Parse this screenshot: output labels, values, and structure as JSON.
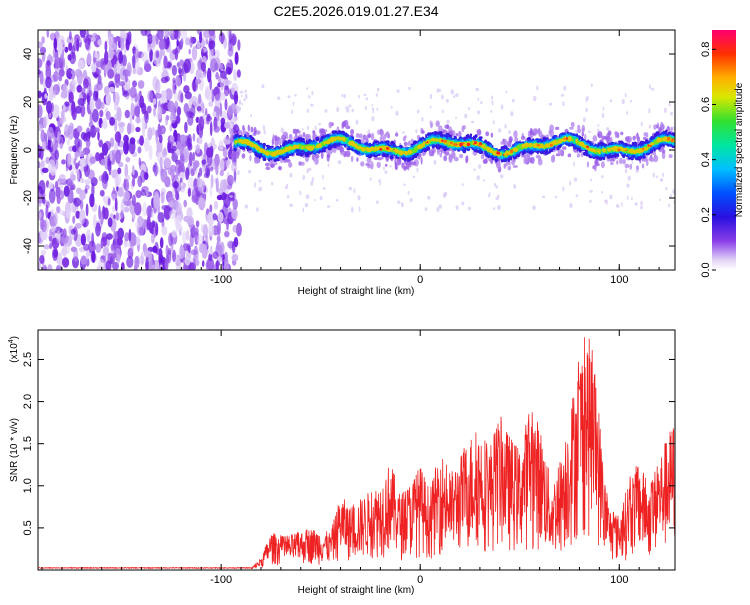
{
  "title": "C2E5.2026.019.01.27.E34",
  "chart_data": [
    {
      "type": "heatmap",
      "xlabel": "Height of straight line (km)",
      "ylabel": "Frequency (Hz)",
      "xlim": [
        -192,
        128
      ],
      "ylim": [
        -50,
        50
      ],
      "xticks": [
        -100,
        0,
        100
      ],
      "yticks": [
        -40,
        -20,
        0,
        20,
        40
      ],
      "noise_region": [
        -192,
        -95
      ],
      "signal_region": [
        -95,
        128
      ],
      "signal_band_hz": [
        -5,
        6
      ],
      "colorbar": {
        "label": "Normalized spectral amplitude",
        "range": [
          0.0,
          0.87
        ],
        "ticks": [
          "0.0",
          "0.2",
          "0.4",
          "0.6",
          "0.8"
        ]
      }
    },
    {
      "type": "line",
      "xlabel": "Height of straight line (km)",
      "ylabel": "SNR (10 * v/v)",
      "multiplier": "(x10",
      "multiplier_exp": "4",
      "multiplier_close": ")",
      "xlim": [
        -192,
        128
      ],
      "ylim": [
        0,
        2.85
      ],
      "xticks": [
        -100,
        0,
        100
      ],
      "yticks": [
        "0.5",
        "1.0",
        "1.5",
        "2.0",
        "2.5"
      ],
      "color": "#ee2222",
      "envelope": [
        [
          -192,
          0.02
        ],
        [
          -85,
          0.02
        ],
        [
          -80,
          0.15
        ],
        [
          -75,
          0.45
        ],
        [
          -68,
          0.4
        ],
        [
          -55,
          0.5
        ],
        [
          -45,
          0.45
        ],
        [
          -40,
          0.9
        ],
        [
          -35,
          0.75
        ],
        [
          -25,
          0.95
        ],
        [
          -20,
          1.05
        ],
        [
          -15,
          1.3
        ],
        [
          -10,
          0.9
        ],
        [
          -5,
          1.05
        ],
        [
          0,
          1.25
        ],
        [
          5,
          0.95
        ],
        [
          10,
          1.45
        ],
        [
          15,
          1.15
        ],
        [
          20,
          1.35
        ],
        [
          25,
          1.6
        ],
        [
          30,
          1.7
        ],
        [
          35,
          1.5
        ],
        [
          40,
          1.85
        ],
        [
          45,
          1.6
        ],
        [
          50,
          1.45
        ],
        [
          55,
          1.95
        ],
        [
          60,
          1.75
        ],
        [
          63,
          1.4
        ],
        [
          66,
          1.0
        ],
        [
          70,
          1.3
        ],
        [
          75,
          1.9
        ],
        [
          80,
          2.55
        ],
        [
          83,
          2.85
        ],
        [
          86,
          2.7
        ],
        [
          90,
          1.9
        ],
        [
          92,
          1.2
        ],
        [
          95,
          0.75
        ],
        [
          100,
          0.65
        ],
        [
          105,
          1.1
        ],
        [
          110,
          1.3
        ],
        [
          115,
          1.0
        ],
        [
          120,
          1.35
        ],
        [
          125,
          1.65
        ],
        [
          128,
          1.8
        ]
      ]
    }
  ]
}
